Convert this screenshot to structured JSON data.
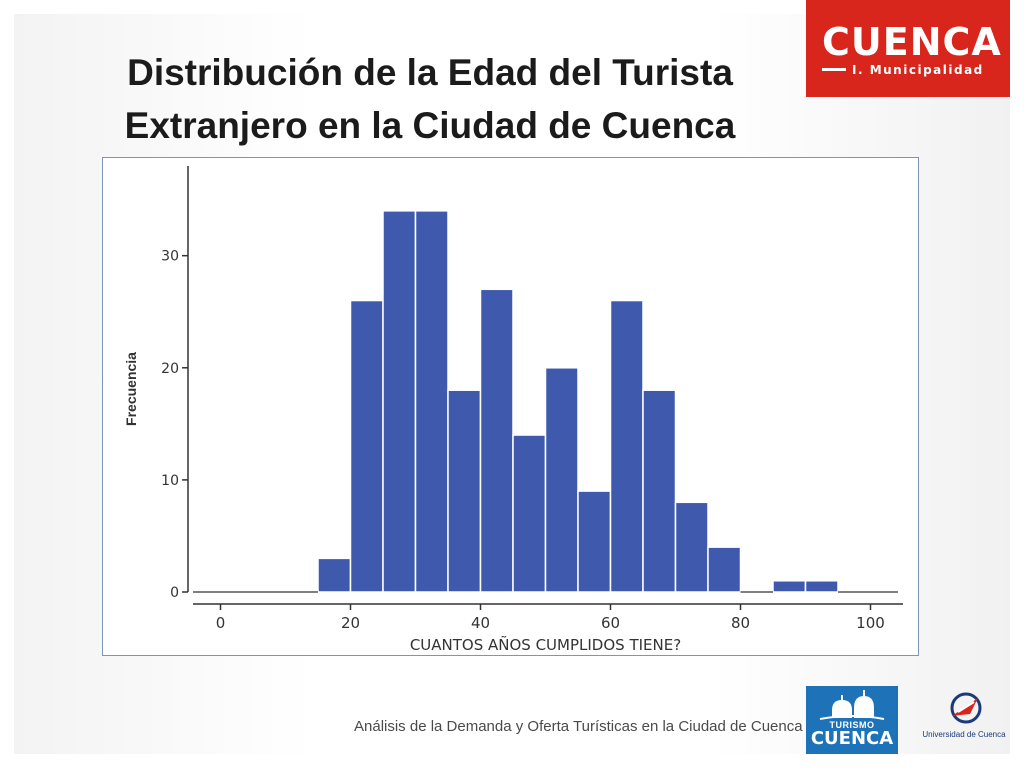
{
  "slide": {
    "title_line1": "Distribución de la Edad del Turista",
    "title_line2": "Extranjero en la Ciudad de Cuenca",
    "footer": "Análisis de la Demanda y Oferta Turísticas en la Ciudad de Cuenca"
  },
  "logos": {
    "municipal_word": "CUENCA",
    "municipal_sub": "I. Municipalidad",
    "turismo_top": "TURISMO",
    "turismo_word": "CUENCA",
    "university": "Universidad de Cuenca"
  },
  "colors": {
    "bar_fill": "#3f5aad",
    "bar_stroke": "#ffffff",
    "municipal_red": "#d9261c",
    "turismo_blue": "#1e73b8"
  },
  "chart_data": {
    "type": "bar",
    "title": "",
    "xlabel": "CUANTOS AÑOS CUMPLIDOS TIENE?",
    "ylabel": "Frecuencia",
    "xlim": [
      -5,
      105
    ],
    "ylim": [
      0,
      38
    ],
    "x_ticks": [
      0,
      20,
      40,
      60,
      80,
      100
    ],
    "y_ticks": [
      0,
      10,
      20,
      30
    ],
    "bin_width": 5,
    "bins": [
      {
        "start": 15,
        "value": 3
      },
      {
        "start": 20,
        "value": 26
      },
      {
        "start": 25,
        "value": 34
      },
      {
        "start": 30,
        "value": 34
      },
      {
        "start": 35,
        "value": 18
      },
      {
        "start": 40,
        "value": 27
      },
      {
        "start": 45,
        "value": 14
      },
      {
        "start": 50,
        "value": 20
      },
      {
        "start": 55,
        "value": 9
      },
      {
        "start": 60,
        "value": 26
      },
      {
        "start": 65,
        "value": 18
      },
      {
        "start": 70,
        "value": 8
      },
      {
        "start": 75,
        "value": 4
      },
      {
        "start": 85,
        "value": 1
      },
      {
        "start": 90,
        "value": 1
      }
    ],
    "grid": false,
    "legend": "none"
  }
}
